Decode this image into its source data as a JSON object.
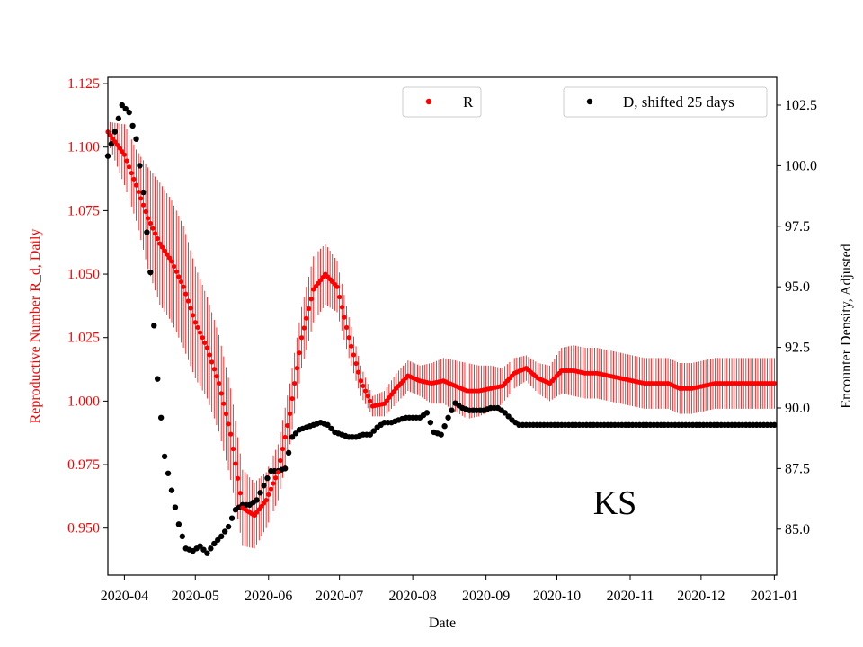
{
  "chart_data": {
    "type": "scatter",
    "xlabel": "Date",
    "annotation": "KS",
    "x_ticks": [
      "2020-04",
      "2020-05",
      "2020-06",
      "2020-07",
      "2020-08",
      "2020-09",
      "2020-10",
      "2020-11",
      "2020-12",
      "2021-01"
    ],
    "xlim": [
      -7,
      276
    ],
    "left_axis": {
      "label": "Reproductive Number R_d, Daily",
      "color": "#ff0000",
      "ylim": [
        0.9315,
        1.1275
      ],
      "ticks": [
        "0.950",
        "0.975",
        "1.000",
        "1.025",
        "1.050",
        "1.075",
        "1.100",
        "1.125"
      ]
    },
    "right_axis": {
      "label": "Encounter Density, Adjusted",
      "color": "#000000",
      "ylim": [
        83.1,
        103.65
      ],
      "ticks": [
        "85.0",
        "87.5",
        "90.0",
        "92.5",
        "95.0",
        "97.5",
        "100.0",
        "102.5"
      ]
    },
    "legends": [
      {
        "label": "R",
        "color": "#ff0000",
        "placement": "upper-center"
      },
      {
        "label": "D, shifted 25 days",
        "color": "#000000",
        "placement": "upper-right"
      }
    ],
    "series_R": {
      "name": "R",
      "color": "#ff0000",
      "day_offset_from_2020_04_01": [
        -7,
        0,
        5,
        10,
        15,
        20,
        25,
        30,
        35,
        40,
        45,
        50,
        55,
        60,
        65,
        70,
        75,
        80,
        85,
        90,
        95,
        100,
        105,
        110,
        115,
        120,
        125,
        130,
        135,
        140,
        145,
        150,
        155,
        160,
        165,
        170,
        175,
        180,
        185,
        190,
        195,
        200,
        205,
        210,
        215,
        220,
        225,
        230,
        235,
        240,
        245,
        250,
        255,
        260,
        265,
        270,
        275
      ],
      "values": [
        1.106,
        1.097,
        1.085,
        1.072,
        1.062,
        1.055,
        1.045,
        1.031,
        1.021,
        1.007,
        0.987,
        0.958,
        0.955,
        0.961,
        0.972,
        0.995,
        1.025,
        1.044,
        1.05,
        1.045,
        1.025,
        1.008,
        0.998,
        0.999,
        1.005,
        1.01,
        1.008,
        1.007,
        1.008,
        1.006,
        1.004,
        1.004,
        1.005,
        1.006,
        1.011,
        1.013,
        1.009,
        1.007,
        1.012,
        1.012,
        1.011,
        1.011,
        1.01,
        1.009,
        1.008,
        1.007,
        1.007,
        1.007,
        1.005,
        1.005,
        1.006,
        1.007,
        1.007,
        1.007,
        1.007,
        1.007,
        1.007
      ],
      "error": [
        0.004,
        0.012,
        0.014,
        0.02,
        0.024,
        0.024,
        0.024,
        0.022,
        0.02,
        0.019,
        0.018,
        0.015,
        0.013,
        0.011,
        0.011,
        0.012,
        0.012,
        0.013,
        0.012,
        0.01,
        0.008,
        0.006,
        0.004,
        0.005,
        0.006,
        0.006,
        0.006,
        0.008,
        0.009,
        0.01,
        0.011,
        0.01,
        0.009,
        0.007,
        0.006,
        0.005,
        0.006,
        0.007,
        0.009,
        0.01,
        0.01,
        0.01,
        0.01,
        0.01,
        0.01,
        0.01,
        0.01,
        0.01,
        0.01,
        0.01,
        0.01,
        0.01,
        0.01,
        0.01,
        0.01,
        0.01,
        0.01
      ]
    },
    "series_D": {
      "name": "D, shifted 25 days",
      "color": "#000000",
      "day_offset_from_2020_04_01": [
        -7,
        -4,
        -1,
        2,
        5,
        8,
        11,
        14,
        17,
        20,
        23,
        26,
        29,
        32,
        35,
        38,
        41,
        44,
        47,
        50,
        53,
        56,
        59,
        62,
        65,
        68,
        71,
        74,
        77,
        80,
        83,
        86,
        89,
        92,
        95,
        98,
        101,
        104,
        107,
        110,
        113,
        116,
        119,
        122,
        125,
        128,
        131,
        134,
        137,
        140,
        143,
        146,
        149,
        152,
        155,
        158,
        161,
        164,
        167,
        170,
        173,
        176,
        179,
        182,
        185,
        188,
        191,
        194,
        197,
        200,
        203,
        206,
        209,
        212,
        215,
        218,
        221,
        224,
        227,
        230,
        233,
        236,
        239,
        242,
        245,
        248,
        251,
        254,
        257,
        260,
        263,
        266,
        269,
        272,
        275
      ],
      "values": [
        100.4,
        101.4,
        102.5,
        102.2,
        101.1,
        98.9,
        95.6,
        91.2,
        88.0,
        86.6,
        85.2,
        84.2,
        84.1,
        84.3,
        84.0,
        84.4,
        84.7,
        85.1,
        85.8,
        86.0,
        86.0,
        86.2,
        86.8,
        87.4,
        87.4,
        87.5,
        88.8,
        89.1,
        89.2,
        89.3,
        89.4,
        89.3,
        89.0,
        88.9,
        88.8,
        88.8,
        88.9,
        88.9,
        89.2,
        89.4,
        89.4,
        89.5,
        89.6,
        89.6,
        89.6,
        89.8,
        89.0,
        88.9,
        89.6,
        90.2,
        90.0,
        89.9,
        89.9,
        89.9,
        90.0,
        90.0,
        89.8,
        89.5,
        89.3,
        89.3,
        89.3,
        89.3,
        89.3,
        89.3,
        89.3,
        89.3,
        89.3,
        89.3,
        89.3,
        89.3,
        89.3,
        89.3,
        89.3,
        89.3,
        89.3,
        89.3,
        89.3,
        89.3,
        89.3,
        89.3,
        89.3,
        89.3,
        89.3,
        89.3,
        89.3,
        89.3,
        89.3,
        89.3,
        89.3,
        89.3,
        89.3,
        89.3,
        89.3,
        89.3,
        89.3
      ]
    }
  }
}
